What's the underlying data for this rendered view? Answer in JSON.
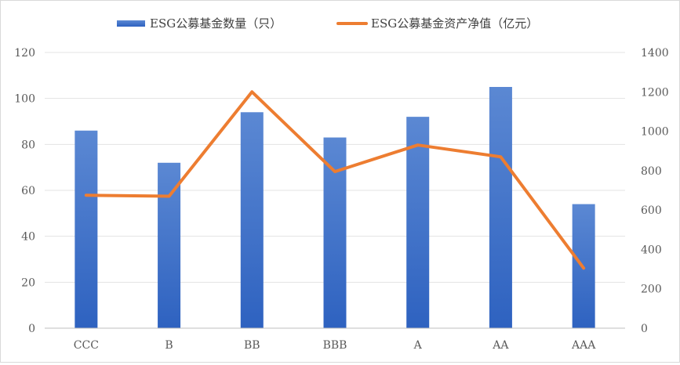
{
  "chart_data": {
    "type": "bar",
    "categories": [
      "CCC",
      "B",
      "BB",
      "BBB",
      "A",
      "AA",
      "AAA"
    ],
    "series": [
      {
        "name": "ESG公募基金数量（只）",
        "type": "bar",
        "axis": "left",
        "values": [
          86,
          72,
          94,
          83,
          92,
          105,
          54
        ]
      },
      {
        "name": "ESG公募基金资产净值（亿元）",
        "type": "line",
        "axis": "right",
        "values": [
          675,
          670,
          1200,
          795,
          930,
          870,
          305
        ]
      }
    ],
    "y_left": {
      "ylim": [
        0,
        120
      ],
      "ticks": [
        0,
        20,
        40,
        60,
        80,
        100,
        120
      ]
    },
    "y_right": {
      "ylim": [
        0,
        1400
      ],
      "ticks": [
        0,
        200,
        400,
        600,
        800,
        1000,
        1200,
        1400
      ]
    },
    "grid": true,
    "legend_position": "top"
  },
  "colors": {
    "bar_top": "#5b88d3",
    "bar_bottom": "#2e62c0",
    "line": "#ed7d31",
    "grid": "#e3e3e3",
    "axis": "#bfbfbf"
  }
}
